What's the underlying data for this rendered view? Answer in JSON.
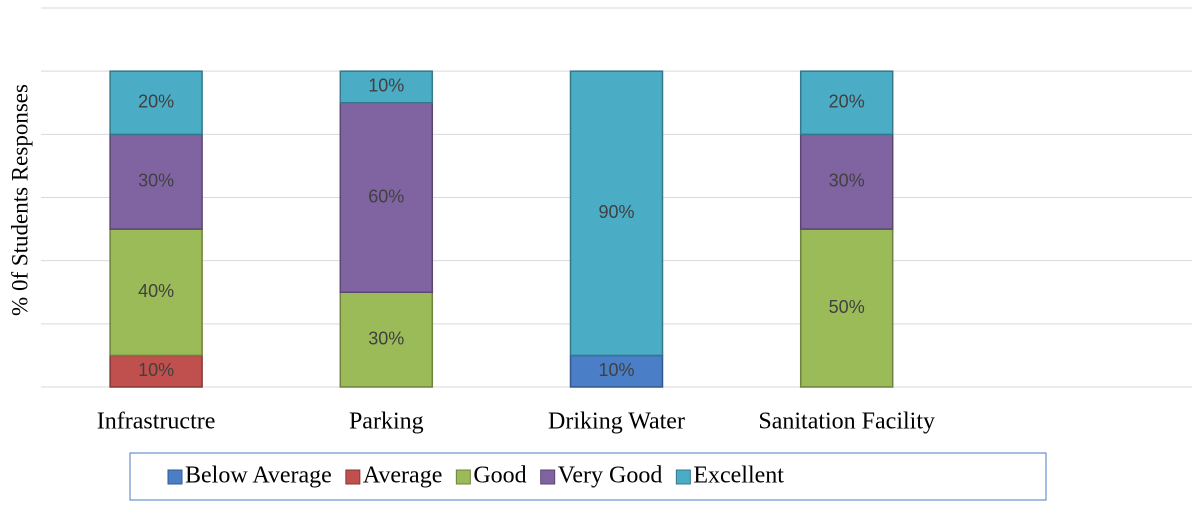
{
  "chart_data": {
    "type": "stacked_bar",
    "y_label": "% 0f Students Responses",
    "categories": [
      "Infrastructre",
      "Parking",
      "Driking Water",
      "Sanitation Facility",
      null
    ],
    "series": [
      {
        "name": "Below Average",
        "color": "#4a7ec6",
        "values": [
          null,
          null,
          10,
          null,
          null
        ],
        "value_labels": [
          null,
          null,
          "10%",
          null,
          null
        ]
      },
      {
        "name": "Average",
        "color": "#c0504d",
        "values": [
          10,
          null,
          null,
          null,
          null
        ],
        "value_labels": [
          "10%",
          null,
          null,
          null,
          null
        ]
      },
      {
        "name": "Good",
        "color": "#9bbb59",
        "values": [
          40,
          30,
          null,
          50,
          null
        ],
        "value_labels": [
          "40%",
          "30%",
          null,
          "50%",
          null
        ]
      },
      {
        "name": "Very Good",
        "color": "#8064a2",
        "values": [
          30,
          60,
          null,
          30,
          null
        ],
        "value_labels": [
          "30%",
          "60%",
          null,
          "30%",
          null
        ]
      },
      {
        "name": "Excellent",
        "color": "#4bacc6",
        "values": [
          20,
          10,
          90,
          20,
          null
        ],
        "value_labels": [
          "20%",
          "10%",
          "90%",
          "20%",
          null
        ]
      }
    ],
    "ylim": [
      0,
      120
    ],
    "yticks": [
      0,
      20,
      40,
      60,
      80,
      100,
      120
    ],
    "grid": true
  }
}
